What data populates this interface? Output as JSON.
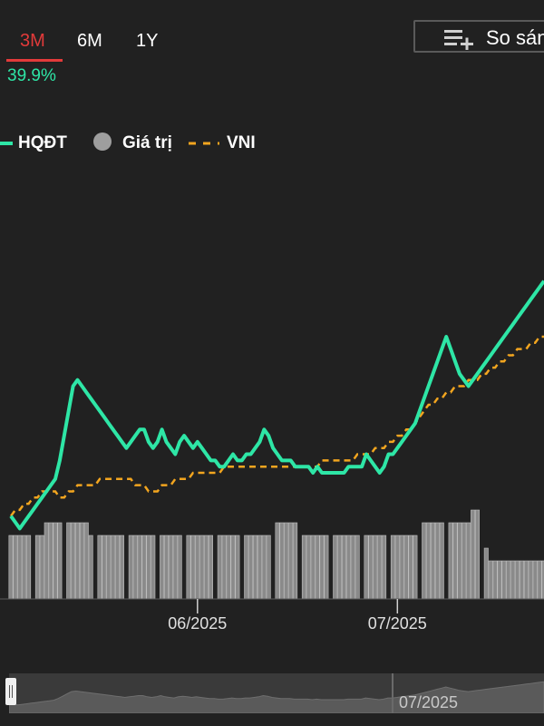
{
  "tabs": [
    {
      "label": "3M",
      "active": true
    },
    {
      "label": "6M",
      "active": false
    },
    {
      "label": "1Y",
      "active": false
    }
  ],
  "change_pct": "39.9%",
  "compare_button": {
    "label": "So sánh",
    "icon": "playlist-add-icon"
  },
  "legend": [
    {
      "label": "HQĐT",
      "color": "#2ee6a6",
      "style": "solid"
    },
    {
      "label": "Giá trị",
      "color": "#9e9e9e",
      "style": "dot"
    },
    {
      "label": "VNI",
      "color": "#f2a51f",
      "style": "dashed"
    }
  ],
  "colors": {
    "background": "#212121",
    "accent_red": "#e23a3a",
    "line_green": "#2ee6a6",
    "vni_orange": "#f2a51f",
    "bar_gray": "#8a8a8a"
  },
  "chart_data": {
    "type": "line",
    "x_tick_labels": [
      "06/2025",
      "07/2025"
    ],
    "x_ticks": [
      42,
      87
    ],
    "x": [
      0,
      1,
      2,
      3,
      4,
      5,
      6,
      7,
      8,
      9,
      10,
      11,
      12,
      13,
      14,
      15,
      16,
      17,
      18,
      19,
      20,
      21,
      22,
      23,
      24,
      25,
      26,
      27,
      28,
      29,
      30,
      31,
      32,
      33,
      34,
      35,
      36,
      37,
      38,
      39,
      40,
      41,
      42,
      43,
      44,
      45,
      46,
      47,
      48,
      49,
      50,
      51,
      52,
      53,
      54,
      55,
      56,
      57,
      58,
      59,
      60,
      61,
      62,
      63,
      64,
      65,
      66,
      67,
      68,
      69,
      70,
      71,
      72,
      73,
      74,
      75,
      76,
      77,
      78,
      79,
      80,
      81,
      82,
      83,
      84,
      85,
      86,
      87,
      88,
      89,
      90,
      91,
      92,
      93,
      94,
      95,
      96,
      97,
      98,
      99,
      100,
      101,
      102,
      103,
      104,
      105,
      106,
      107,
      108,
      109,
      110,
      111,
      112,
      113,
      114,
      115,
      116,
      117,
      118,
      119,
      120
    ],
    "series": [
      {
        "name": "HQĐT",
        "values": [
          0,
          -1,
          -2,
          -1,
          0,
          1,
          2,
          3,
          4,
          5,
          6,
          9,
          13,
          17,
          21,
          22,
          21,
          20,
          19,
          18,
          17,
          16,
          15,
          14,
          13,
          12,
          11,
          12,
          13,
          14,
          14,
          12,
          11,
          12,
          14,
          12,
          11,
          10,
          12,
          13,
          12,
          11,
          12,
          11,
          10,
          9,
          9,
          8,
          8,
          9,
          10,
          9,
          9,
          10,
          10,
          11,
          12,
          14,
          13,
          11,
          10,
          9,
          9,
          9,
          8,
          8,
          8,
          8,
          7,
          8,
          7,
          7,
          7,
          7,
          7,
          7,
          8,
          8,
          8,
          8,
          10,
          9,
          8,
          7,
          8,
          10,
          10,
          11,
          12,
          13,
          14,
          15,
          17,
          19,
          21,
          23,
          25,
          27,
          29,
          27,
          25,
          23,
          22,
          21,
          22,
          23,
          24,
          25,
          26,
          27,
          28,
          29,
          30,
          31,
          32,
          33,
          34,
          35,
          36,
          37,
          38
        ],
        "style": "solid"
      },
      {
        "name": "VNI",
        "values": [
          0,
          1,
          1,
          2,
          2,
          3,
          3,
          4,
          4,
          4,
          4,
          3,
          3,
          4,
          4,
          5,
          5,
          5,
          5,
          5,
          6,
          6,
          6,
          6,
          6,
          6,
          6,
          6,
          5,
          5,
          5,
          4,
          4,
          4,
          5,
          5,
          5,
          6,
          6,
          6,
          6,
          7,
          7,
          7,
          7,
          7,
          7,
          7,
          8,
          8,
          8,
          8,
          8,
          8,
          8,
          8,
          8,
          8,
          8,
          8,
          8,
          8,
          8,
          8,
          8,
          8,
          8,
          8,
          8,
          8,
          9,
          9,
          9,
          9,
          9,
          9,
          9,
          9,
          10,
          10,
          10,
          10,
          11,
          11,
          11,
          12,
          12,
          13,
          13,
          14,
          14,
          15,
          16,
          17,
          18,
          18,
          19,
          19,
          20,
          20,
          21,
          21,
          21,
          22,
          22,
          22,
          23,
          23,
          24,
          24,
          25,
          25,
          26,
          26,
          27,
          27,
          27,
          28,
          28,
          29,
          29
        ],
        "style": "dashed"
      }
    ],
    "volume": {
      "name": "Giá trị",
      "values": [
        5,
        5,
        5,
        5,
        5,
        0,
        5,
        5,
        6,
        6,
        6,
        6,
        0,
        6,
        6,
        6,
        6,
        6,
        5,
        0,
        5,
        5,
        5,
        5,
        5,
        5,
        0,
        5,
        5,
        5,
        5,
        5,
        5,
        0,
        5,
        5,
        5,
        5,
        5,
        0,
        5,
        5,
        5,
        5,
        5,
        5,
        0,
        5,
        5,
        5,
        5,
        5,
        0,
        5,
        5,
        5,
        5,
        5,
        5,
        0,
        6,
        6,
        6,
        6,
        6,
        0,
        5,
        5,
        5,
        5,
        5,
        5,
        0,
        5,
        5,
        5,
        5,
        5,
        5,
        0,
        5,
        5,
        5,
        5,
        5,
        0,
        5,
        5,
        5,
        5,
        5,
        5,
        0,
        6,
        6,
        6,
        6,
        6,
        0,
        6,
        6,
        6,
        6,
        6,
        7,
        7,
        0,
        4,
        3,
        3,
        3,
        3,
        3,
        3,
        3,
        3,
        3,
        3,
        3,
        3,
        3
      ]
    },
    "ylim": [
      -4,
      40
    ],
    "grid": false
  },
  "navigator": {
    "label": "07/2025"
  }
}
